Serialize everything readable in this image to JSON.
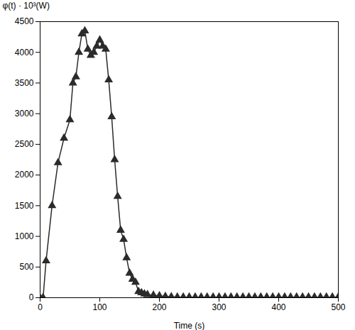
{
  "chart_data": {
    "type": "line",
    "x": [
      0,
      5,
      10,
      20,
      30,
      40,
      50,
      55,
      60,
      65,
      70,
      75,
      80,
      85,
      90,
      95,
      100,
      105,
      110,
      115,
      120,
      125,
      130,
      135,
      140,
      145,
      150,
      155,
      160,
      165,
      170,
      175,
      180,
      190,
      200,
      210,
      220,
      230,
      240,
      250,
      260,
      270,
      280,
      290,
      300,
      310,
      320,
      330,
      340,
      350,
      360,
      370,
      380,
      390,
      400,
      410,
      420,
      430,
      440,
      450,
      460,
      470,
      480,
      490,
      500
    ],
    "values": [
      0,
      0,
      600,
      1500,
      2200,
      2600,
      2900,
      3500,
      3600,
      4000,
      4300,
      4350,
      4050,
      3950,
      4000,
      4100,
      4200,
      4100,
      4050,
      3550,
      2950,
      2250,
      1650,
      1100,
      950,
      650,
      400,
      300,
      250,
      100,
      80,
      60,
      50,
      40,
      30,
      20,
      15,
      10,
      10,
      10,
      10,
      10,
      10,
      10,
      10,
      10,
      10,
      10,
      10,
      10,
      10,
      10,
      10,
      10,
      10,
      10,
      10,
      10,
      10,
      10,
      10,
      10,
      10,
      10,
      10
    ],
    "xlabel": "Time (s)",
    "ylabel": "φ(t) · 10³(W)",
    "xlim": [
      0,
      500
    ],
    "ylim": [
      0,
      4500
    ],
    "xticks": [
      0,
      100,
      200,
      300,
      400,
      500
    ],
    "yticks": [
      0,
      500,
      1000,
      1500,
      2000,
      2500,
      3000,
      3500,
      4000,
      4500
    ],
    "color": "#2b2b2b",
    "marker": "triangle",
    "grid": false
  }
}
